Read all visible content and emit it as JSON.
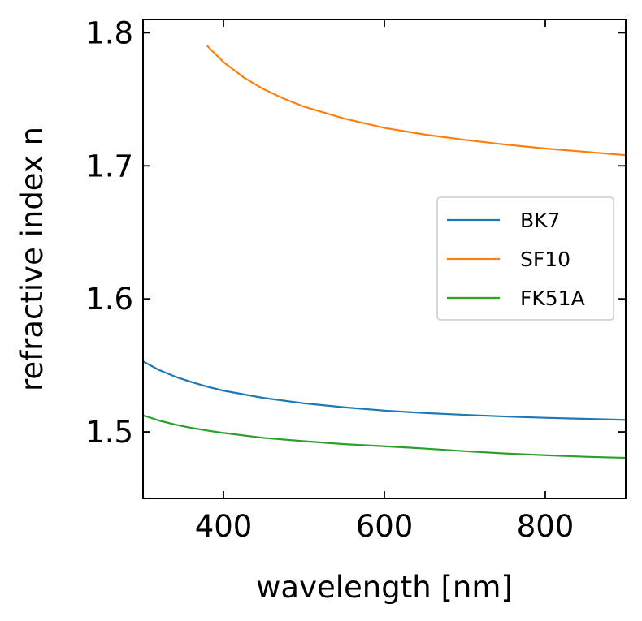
{
  "chart_data": {
    "type": "line",
    "title": "",
    "xlabel": "wavelength [nm]",
    "ylabel": "refractive index n",
    "xlim": [
      300,
      900
    ],
    "ylim": [
      1.45,
      1.81
    ],
    "xticks": [
      400,
      600,
      800
    ],
    "yticks": [
      1.5,
      1.6,
      1.7,
      1.8
    ],
    "xtick_labels": [
      "400",
      "600",
      "800"
    ],
    "ytick_labels": [
      "1.5",
      "1.6",
      "1.7",
      "1.8"
    ],
    "grid": false,
    "legend_position": "center-right",
    "series": [
      {
        "name": "BK7",
        "color": "#1f77b4",
        "x": [
          300,
          320,
          340,
          360,
          380,
          400,
          450,
          500,
          550,
          600,
          650,
          700,
          750,
          800,
          850,
          900
        ],
        "y": [
          1.553,
          1.5465,
          1.5415,
          1.5375,
          1.534,
          1.531,
          1.5255,
          1.5215,
          1.5185,
          1.516,
          1.5142,
          1.5128,
          1.5116,
          1.5106,
          1.5098,
          1.509
        ]
      },
      {
        "name": "SF10",
        "color": "#ff7f0e",
        "x": [
          380,
          400,
          425,
          450,
          475,
          500,
          550,
          600,
          650,
          700,
          750,
          800,
          850,
          900
        ],
        "y": [
          1.79,
          1.778,
          1.7665,
          1.7575,
          1.7505,
          1.7445,
          1.7355,
          1.7285,
          1.7235,
          1.7195,
          1.716,
          1.713,
          1.7105,
          1.708
        ]
      },
      {
        "name": "FK51A",
        "color": "#2ca02c",
        "x": [
          300,
          320,
          340,
          360,
          380,
          400,
          450,
          500,
          550,
          600,
          650,
          700,
          750,
          800,
          850,
          900
        ],
        "y": [
          1.5125,
          1.5085,
          1.5055,
          1.503,
          1.501,
          1.4992,
          1.4955,
          1.493,
          1.4908,
          1.4892,
          1.4875,
          1.4855,
          1.4838,
          1.4825,
          1.4813,
          1.4805
        ]
      }
    ]
  }
}
